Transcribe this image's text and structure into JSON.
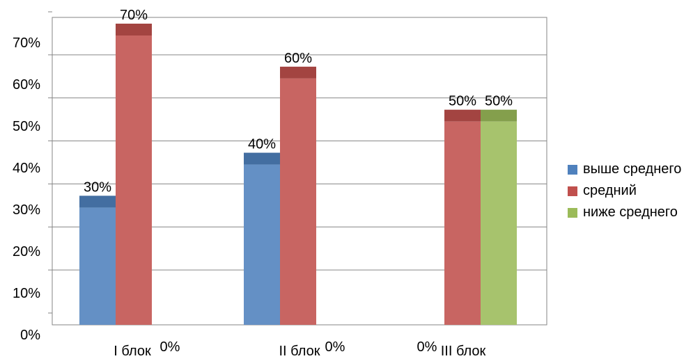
{
  "chart_data": {
    "type": "bar",
    "categories": [
      "I блок",
      "II блок",
      "III блок"
    ],
    "series": [
      {
        "name": "выше среднего",
        "color": "#4F81BD",
        "values": [
          30,
          40,
          0
        ]
      },
      {
        "name": "средний",
        "color": "#C0504D",
        "values": [
          70,
          60,
          50
        ]
      },
      {
        "name": "ниже среднего",
        "color": "#9BBB59",
        "values": [
          0,
          0,
          50
        ]
      }
    ],
    "data_labels": [
      [
        "30%",
        "40%",
        "0%"
      ],
      [
        "70%",
        "60%",
        "50%"
      ],
      [
        "0%",
        "0%",
        "50%"
      ]
    ],
    "y_ticks": [
      "0%",
      "10%",
      "20%",
      "30%",
      "40%",
      "50%",
      "60%",
      "70%"
    ],
    "ylim": [
      0,
      70
    ],
    "grid": true,
    "legend": "right"
  }
}
